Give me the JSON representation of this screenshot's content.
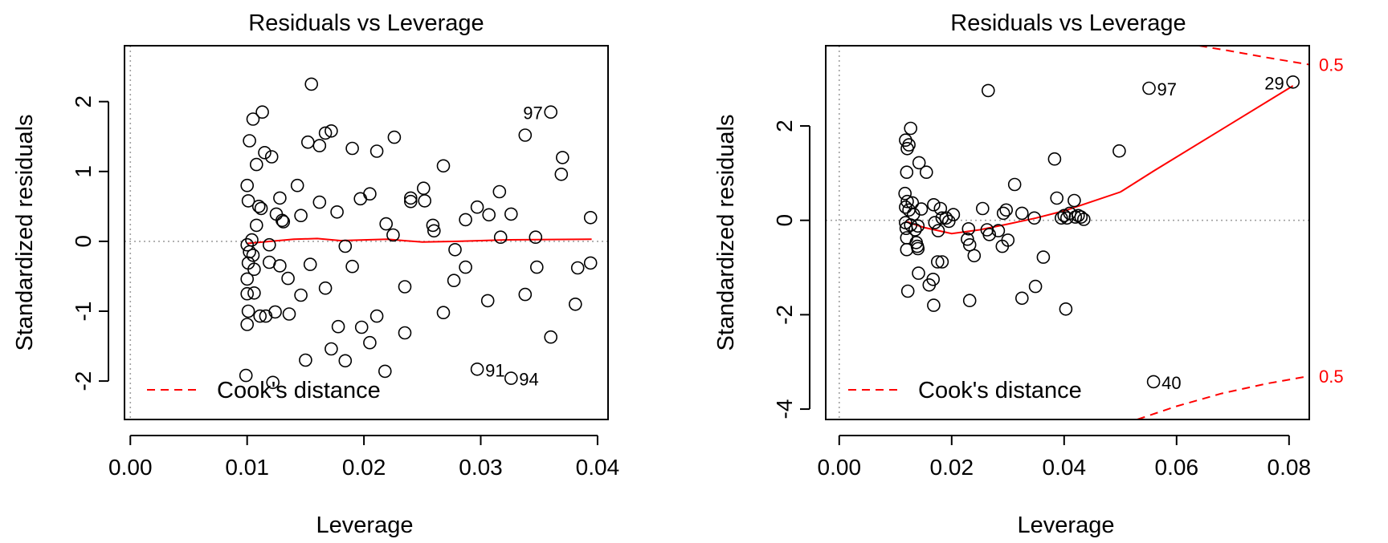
{
  "colors": {
    "axis": "#000000",
    "fit": "#ff0000",
    "cook": "#ff0000",
    "ref": "#a0a0a0",
    "points": "#000000"
  },
  "chart_data": [
    {
      "type": "scatter",
      "title": "Residuals vs Leverage",
      "xlabel": "Leverage",
      "ylabel": "Standardized residuals",
      "xlim": [
        -0.0005,
        0.0409
      ],
      "ylim": [
        -2.55,
        2.8
      ],
      "xticks": [
        0.0,
        0.01,
        0.02,
        0.03,
        0.04
      ],
      "xtick_labels": [
        "0.00",
        "0.01",
        "0.02",
        "0.03",
        "0.04"
      ],
      "yticks": [
        -2,
        -1,
        0,
        1,
        2
      ],
      "ytick_labels": [
        "-2",
        "-1",
        "0",
        "1",
        "2"
      ],
      "reference_lines": {
        "x": 0,
        "y": 0
      },
      "points": [
        {
          "x": 0.0155,
          "y": 2.25
        },
        {
          "x": 0.0113,
          "y": 1.85
        },
        {
          "x": 0.0105,
          "y": 1.75
        },
        {
          "x": 0.0172,
          "y": 1.58
        },
        {
          "x": 0.0167,
          "y": 1.55
        },
        {
          "x": 0.0226,
          "y": 1.49
        },
        {
          "x": 0.0152,
          "y": 1.42
        },
        {
          "x": 0.0162,
          "y": 1.37
        },
        {
          "x": 0.019,
          "y": 1.33
        },
        {
          "x": 0.0211,
          "y": 1.29
        },
        {
          "x": 0.0102,
          "y": 1.44
        },
        {
          "x": 0.0115,
          "y": 1.27
        },
        {
          "x": 0.0121,
          "y": 1.21
        },
        {
          "x": 0.0108,
          "y": 1.1
        },
        {
          "x": 0.0268,
          "y": 1.08
        },
        {
          "x": 0.0338,
          "y": 1.52
        },
        {
          "x": 0.037,
          "y": 1.2
        },
        {
          "x": 0.0369,
          "y": 0.96
        },
        {
          "x": 0.036,
          "y": 1.85,
          "label": "97"
        },
        {
          "x": 0.01,
          "y": 0.8
        },
        {
          "x": 0.0143,
          "y": 0.8
        },
        {
          "x": 0.0101,
          "y": 0.58
        },
        {
          "x": 0.011,
          "y": 0.5
        },
        {
          "x": 0.0112,
          "y": 0.47
        },
        {
          "x": 0.0128,
          "y": 0.62
        },
        {
          "x": 0.0162,
          "y": 0.56
        },
        {
          "x": 0.0197,
          "y": 0.61
        },
        {
          "x": 0.0205,
          "y": 0.68
        },
        {
          "x": 0.024,
          "y": 0.62
        },
        {
          "x": 0.024,
          "y": 0.57
        },
        {
          "x": 0.0251,
          "y": 0.76
        },
        {
          "x": 0.0252,
          "y": 0.58
        },
        {
          "x": 0.0297,
          "y": 0.49
        },
        {
          "x": 0.0316,
          "y": 0.71
        },
        {
          "x": 0.0125,
          "y": 0.39
        },
        {
          "x": 0.013,
          "y": 0.3
        },
        {
          "x": 0.0131,
          "y": 0.28
        },
        {
          "x": 0.0146,
          "y": 0.37
        },
        {
          "x": 0.0177,
          "y": 0.42
        },
        {
          "x": 0.0108,
          "y": 0.23
        },
        {
          "x": 0.0219,
          "y": 0.25
        },
        {
          "x": 0.0259,
          "y": 0.23
        },
        {
          "x": 0.0287,
          "y": 0.31
        },
        {
          "x": 0.0307,
          "y": 0.38
        },
        {
          "x": 0.0326,
          "y": 0.39
        },
        {
          "x": 0.0394,
          "y": 0.34
        },
        {
          "x": 0.026,
          "y": 0.15
        },
        {
          "x": 0.0225,
          "y": 0.09
        },
        {
          "x": 0.0317,
          "y": 0.06
        },
        {
          "x": 0.0347,
          "y": 0.06
        },
        {
          "x": 0.0104,
          "y": 0.02
        },
        {
          "x": 0.01,
          "y": -0.05
        },
        {
          "x": 0.0102,
          "y": -0.15
        },
        {
          "x": 0.0105,
          "y": -0.2
        },
        {
          "x": 0.0119,
          "y": -0.05
        },
        {
          "x": 0.0184,
          "y": -0.07
        },
        {
          "x": 0.0278,
          "y": -0.12
        },
        {
          "x": 0.0101,
          "y": -0.31
        },
        {
          "x": 0.0106,
          "y": -0.4
        },
        {
          "x": 0.0119,
          "y": -0.3
        },
        {
          "x": 0.0128,
          "y": -0.35
        },
        {
          "x": 0.0135,
          "y": -0.53
        },
        {
          "x": 0.0154,
          "y": -0.33
        },
        {
          "x": 0.019,
          "y": -0.36
        },
        {
          "x": 0.01,
          "y": -0.54
        },
        {
          "x": 0.01,
          "y": -0.75
        },
        {
          "x": 0.0106,
          "y": -0.74
        },
        {
          "x": 0.0146,
          "y": -0.77
        },
        {
          "x": 0.0167,
          "y": -0.67
        },
        {
          "x": 0.0235,
          "y": -0.65
        },
        {
          "x": 0.0277,
          "y": -0.56
        },
        {
          "x": 0.0287,
          "y": -0.37
        },
        {
          "x": 0.0348,
          "y": -0.37
        },
        {
          "x": 0.0383,
          "y": -0.38
        },
        {
          "x": 0.0394,
          "y": -0.31
        },
        {
          "x": 0.0338,
          "y": -0.76
        },
        {
          "x": 0.0306,
          "y": -0.85
        },
        {
          "x": 0.0381,
          "y": -0.9
        },
        {
          "x": 0.0101,
          "y": -1.0
        },
        {
          "x": 0.0111,
          "y": -1.07
        },
        {
          "x": 0.0116,
          "y": -1.07
        },
        {
          "x": 0.0124,
          "y": -1.01
        },
        {
          "x": 0.0136,
          "y": -1.04
        },
        {
          "x": 0.0211,
          "y": -1.07
        },
        {
          "x": 0.0268,
          "y": -1.02
        },
        {
          "x": 0.01,
          "y": -1.19
        },
        {
          "x": 0.0178,
          "y": -1.22
        },
        {
          "x": 0.0198,
          "y": -1.23
        },
        {
          "x": 0.0235,
          "y": -1.31
        },
        {
          "x": 0.0205,
          "y": -1.45
        },
        {
          "x": 0.0172,
          "y": -1.54
        },
        {
          "x": 0.036,
          "y": -1.37
        },
        {
          "x": 0.015,
          "y": -1.7
        },
        {
          "x": 0.0184,
          "y": -1.71
        },
        {
          "x": 0.0218,
          "y": -1.86
        },
        {
          "x": 0.0099,
          "y": -1.92
        },
        {
          "x": 0.0122,
          "y": -2.02
        },
        {
          "x": 0.0297,
          "y": -1.83,
          "label": "91"
        },
        {
          "x": 0.0326,
          "y": -1.96,
          "label": "94"
        }
      ],
      "fit_line": [
        {
          "x": 0.01,
          "y": -0.03
        },
        {
          "x": 0.012,
          "y": 0.0
        },
        {
          "x": 0.014,
          "y": 0.03
        },
        {
          "x": 0.016,
          "y": 0.04
        },
        {
          "x": 0.018,
          "y": 0.01
        },
        {
          "x": 0.02,
          "y": 0.02
        },
        {
          "x": 0.022,
          "y": 0.03
        },
        {
          "x": 0.025,
          "y": -0.01
        },
        {
          "x": 0.028,
          "y": 0.0
        },
        {
          "x": 0.032,
          "y": 0.02
        },
        {
          "x": 0.0395,
          "y": 0.03
        }
      ],
      "cook_contours": [],
      "legend": {
        "label": "Cook's distance",
        "position": "bottom-left"
      }
    },
    {
      "type": "scatter",
      "title": "Residuals vs Leverage",
      "xlabel": "Leverage",
      "ylabel": "Standardized residuals",
      "xlim": [
        -0.0024,
        0.0836
      ],
      "ylim": [
        -4.22,
        3.7
      ],
      "xticks": [
        0.0,
        0.02,
        0.04,
        0.06,
        0.08
      ],
      "xtick_labels": [
        "0.00",
        "0.02",
        "0.04",
        "0.06",
        "0.08"
      ],
      "yticks": [
        -4,
        -2,
        0,
        2
      ],
      "ytick_labels": [
        "-4",
        "-2",
        "0",
        "2"
      ],
      "reference_lines": {
        "x": 0,
        "y": 0
      },
      "points": [
        {
          "x": 0.0127,
          "y": 1.95
        },
        {
          "x": 0.0118,
          "y": 1.7
        },
        {
          "x": 0.0124,
          "y": 1.6
        },
        {
          "x": 0.0121,
          "y": 1.52
        },
        {
          "x": 0.0142,
          "y": 1.22
        },
        {
          "x": 0.012,
          "y": 1.02
        },
        {
          "x": 0.0155,
          "y": 1.02
        },
        {
          "x": 0.0117,
          "y": 0.57
        },
        {
          "x": 0.0121,
          "y": 0.4
        },
        {
          "x": 0.013,
          "y": 0.37
        },
        {
          "x": 0.0118,
          "y": 0.28
        },
        {
          "x": 0.0124,
          "y": 0.22
        },
        {
          "x": 0.0132,
          "y": 0.13
        },
        {
          "x": 0.0146,
          "y": 0.24
        },
        {
          "x": 0.0168,
          "y": 0.33
        },
        {
          "x": 0.018,
          "y": 0.25
        },
        {
          "x": 0.0183,
          "y": 0.05
        },
        {
          "x": 0.019,
          "y": 0.05
        },
        {
          "x": 0.0195,
          "y": -0.02
        },
        {
          "x": 0.0203,
          "y": 0.12
        },
        {
          "x": 0.0118,
          "y": -0.05
        },
        {
          "x": 0.0127,
          "y": -0.1
        },
        {
          "x": 0.014,
          "y": -0.12
        },
        {
          "x": 0.0119,
          "y": -0.17
        },
        {
          "x": 0.0135,
          "y": -0.2
        },
        {
          "x": 0.017,
          "y": -0.05
        },
        {
          "x": 0.0176,
          "y": -0.22
        },
        {
          "x": 0.012,
          "y": -0.37
        },
        {
          "x": 0.0137,
          "y": -0.47
        },
        {
          "x": 0.0139,
          "y": -0.55
        },
        {
          "x": 0.014,
          "y": -0.6
        },
        {
          "x": 0.012,
          "y": -0.62
        },
        {
          "x": 0.0175,
          "y": -0.88
        },
        {
          "x": 0.0183,
          "y": -0.88
        },
        {
          "x": 0.0141,
          "y": -1.12
        },
        {
          "x": 0.016,
          "y": -1.37
        },
        {
          "x": 0.0167,
          "y": -1.25
        },
        {
          "x": 0.0122,
          "y": -1.5
        },
        {
          "x": 0.0168,
          "y": -1.8
        },
        {
          "x": 0.023,
          "y": -0.18
        },
        {
          "x": 0.0228,
          "y": -0.4
        },
        {
          "x": 0.0232,
          "y": -0.52
        },
        {
          "x": 0.024,
          "y": -0.75
        },
        {
          "x": 0.0232,
          "y": -1.7
        },
        {
          "x": 0.0255,
          "y": 0.25
        },
        {
          "x": 0.0263,
          "y": -0.2
        },
        {
          "x": 0.0267,
          "y": -0.3
        },
        {
          "x": 0.0265,
          "y": 2.75
        },
        {
          "x": 0.0283,
          "y": -0.22
        },
        {
          "x": 0.029,
          "y": -0.55
        },
        {
          "x": 0.0292,
          "y": 0.15
        },
        {
          "x": 0.0297,
          "y": 0.22
        },
        {
          "x": 0.03,
          "y": -0.42
        },
        {
          "x": 0.0312,
          "y": 0.76
        },
        {
          "x": 0.0325,
          "y": 0.15
        },
        {
          "x": 0.0325,
          "y": -1.65
        },
        {
          "x": 0.0347,
          "y": 0.05
        },
        {
          "x": 0.0349,
          "y": -1.4
        },
        {
          "x": 0.0363,
          "y": -0.78
        },
        {
          "x": 0.0383,
          "y": 1.3
        },
        {
          "x": 0.0387,
          "y": 0.47
        },
        {
          "x": 0.0395,
          "y": 0.05
        },
        {
          "x": 0.04,
          "y": 0.1
        },
        {
          "x": 0.0405,
          "y": 0.05
        },
        {
          "x": 0.041,
          "y": 0.15
        },
        {
          "x": 0.0418,
          "y": 0.42
        },
        {
          "x": 0.042,
          "y": 0.07
        },
        {
          "x": 0.0425,
          "y": 0.1
        },
        {
          "x": 0.043,
          "y": 0.07
        },
        {
          "x": 0.0435,
          "y": 0.02
        },
        {
          "x": 0.0403,
          "y": -1.88
        },
        {
          "x": 0.0498,
          "y": 1.47
        },
        {
          "x": 0.0551,
          "y": 2.8,
          "label": "97"
        },
        {
          "x": 0.0559,
          "y": -3.42,
          "label": "40"
        },
        {
          "x": 0.0807,
          "y": 2.93,
          "label": "29"
        }
      ],
      "fit_line": [
        {
          "x": 0.012,
          "y": -0.03
        },
        {
          "x": 0.015,
          "y": -0.15
        },
        {
          "x": 0.02,
          "y": -0.28
        },
        {
          "x": 0.025,
          "y": -0.2
        },
        {
          "x": 0.03,
          "y": -0.08
        },
        {
          "x": 0.035,
          "y": 0.05
        },
        {
          "x": 0.04,
          "y": 0.2
        },
        {
          "x": 0.045,
          "y": 0.4
        },
        {
          "x": 0.05,
          "y": 0.6
        },
        {
          "x": 0.056,
          "y": 1.05
        },
        {
          "x": 0.0807,
          "y": 2.85
        }
      ],
      "cook_contours": [
        {
          "label": "0.5",
          "level": 0.5,
          "sign": 1,
          "points": [
            {
              "x": 0.064,
              "y": 3.7
            },
            {
              "x": 0.07,
              "y": 3.58
            },
            {
              "x": 0.076,
              "y": 3.45
            },
            {
              "x": 0.0836,
              "y": 3.3
            }
          ]
        },
        {
          "label": "0.5",
          "level": 0.5,
          "sign": -1,
          "points": [
            {
              "x": 0.053,
              "y": -4.22
            },
            {
              "x": 0.06,
              "y": -3.94
            },
            {
              "x": 0.068,
              "y": -3.67
            },
            {
              "x": 0.076,
              "y": -3.46
            },
            {
              "x": 0.0836,
              "y": -3.3
            }
          ]
        }
      ],
      "legend": {
        "label": "Cook's distance",
        "position": "bottom-left"
      }
    }
  ]
}
